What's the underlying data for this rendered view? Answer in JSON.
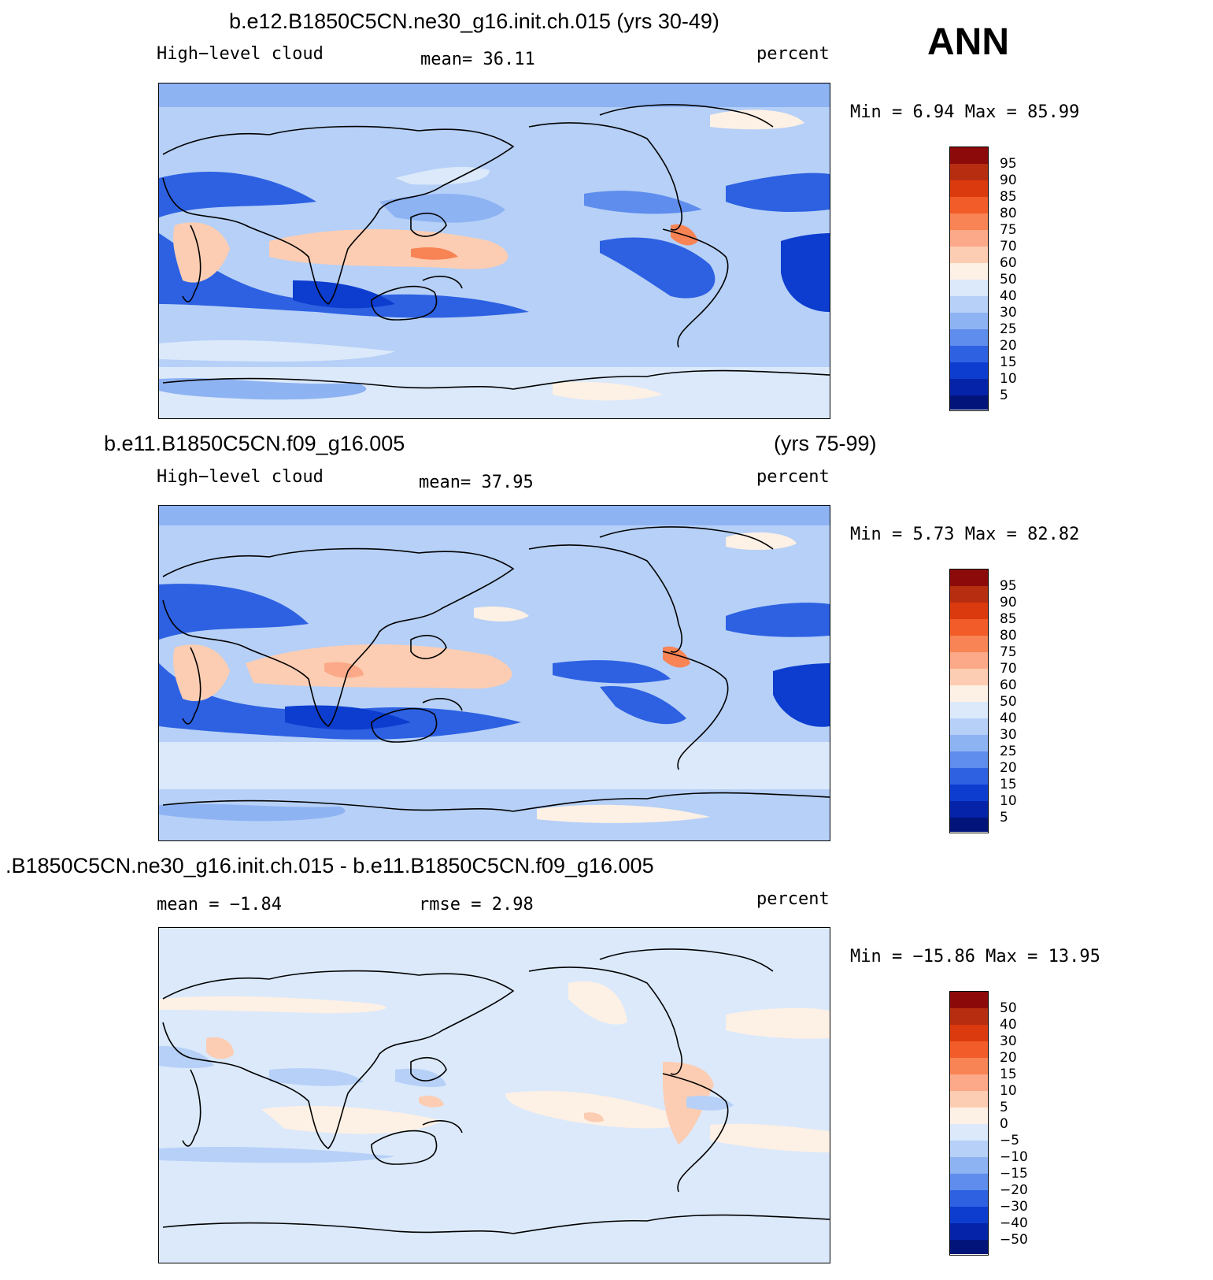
{
  "season_label": "ANN",
  "panels": [
    {
      "case_title": "b.e12.B1850C5CN.ne30_g16.init.ch.015 (yrs 30-49)",
      "case_years": "",
      "variable": "High−level cloud",
      "stat_left": "",
      "stat_center": "mean=   36.11",
      "units": "percent",
      "minmax": "Min =    6.94 Max =   85.99",
      "colorbar_labels": [
        "95",
        "90",
        "85",
        "80",
        "75",
        "70",
        "60",
        "50",
        "40",
        "30",
        "25",
        "20",
        "15",
        "10",
        "5"
      ]
    },
    {
      "case_title": "b.e11.B1850C5CN.f09_g16.005",
      "case_years": "(yrs 75-99)",
      "variable": "High−level cloud",
      "stat_left": "",
      "stat_center": "mean=   37.95",
      "units": "percent",
      "minmax": "Min =    5.73 Max =   82.82",
      "colorbar_labels": [
        "95",
        "90",
        "85",
        "80",
        "75",
        "70",
        "60",
        "50",
        "40",
        "30",
        "25",
        "20",
        "15",
        "10",
        "5"
      ]
    },
    {
      "case_title": ".B1850C5CN.ne30_g16.init.ch.015 - b.e11.B1850C5CN.f09_g16.005",
      "case_years": "",
      "variable": "",
      "stat_left": "mean =  −1.84",
      "stat_center": "rmse =    2.98",
      "units": "percent",
      "minmax": "Min = −15.86 Max =   13.95",
      "colorbar_labels": [
        "50",
        "40",
        "30",
        "20",
        "15",
        "10",
        "5",
        "0",
        "−5",
        "−10",
        "−15",
        "−20",
        "−30",
        "−40",
        "−50"
      ]
    }
  ],
  "colorbar_colors": [
    "#8c0a0a",
    "#b72d10",
    "#db3a0e",
    "#f25c28",
    "#f88355",
    "#fba988",
    "#fccdb2",
    "#fdf0e4",
    "#dbe9fb",
    "#b6d0f7",
    "#8eb3f3",
    "#5f8ded",
    "#2d61e2",
    "#0d3dcf",
    "#0423a8",
    "#02137a"
  ]
}
